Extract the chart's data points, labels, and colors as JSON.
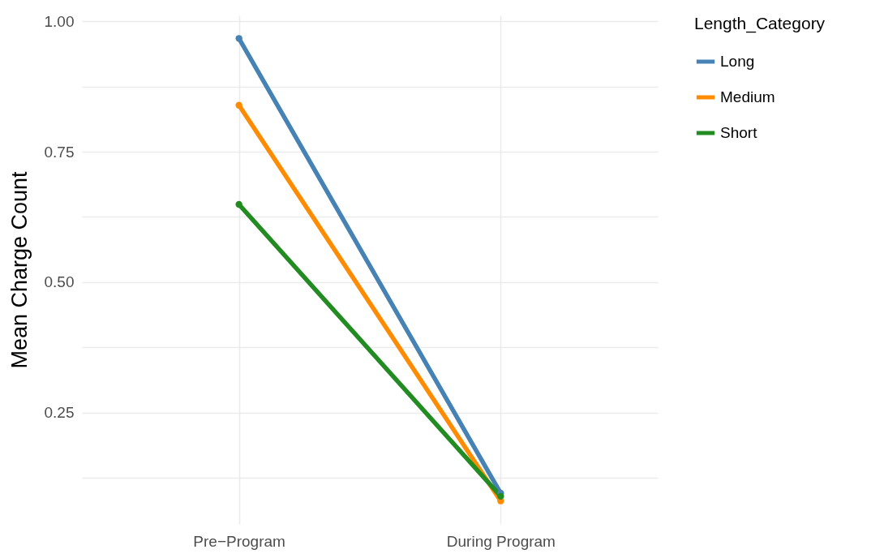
{
  "chart_data": {
    "type": "line",
    "ylabel": "Mean Charge Count",
    "legend_title": "Length_Category",
    "categories": [
      "Pre−Program",
      "During Program"
    ],
    "series": [
      {
        "name": "Long",
        "color": "#4682b4",
        "values": [
          0.967,
          0.096
        ]
      },
      {
        "name": "Medium",
        "color": "#ff8c00",
        "values": [
          0.839,
          0.081
        ]
      },
      {
        "name": "Short",
        "color": "#228b22",
        "values": [
          0.649,
          0.09
        ]
      }
    ],
    "ylim": [
      0.037,
      1.011
    ],
    "yticks": [
      {
        "value": 0.125,
        "label": null
      },
      0.25,
      {
        "value": 0.375,
        "label": null
      },
      {
        "value": 0.5,
        "label": "0.50"
      },
      {
        "value": 0.625,
        "label": null
      },
      0.75,
      {
        "value": 0.875,
        "label": null
      },
      {
        "value": 1,
        "label": "1.00"
      }
    ],
    "grid": true,
    "legend": "right",
    "marker": "circle",
    "line_style": "solid"
  }
}
